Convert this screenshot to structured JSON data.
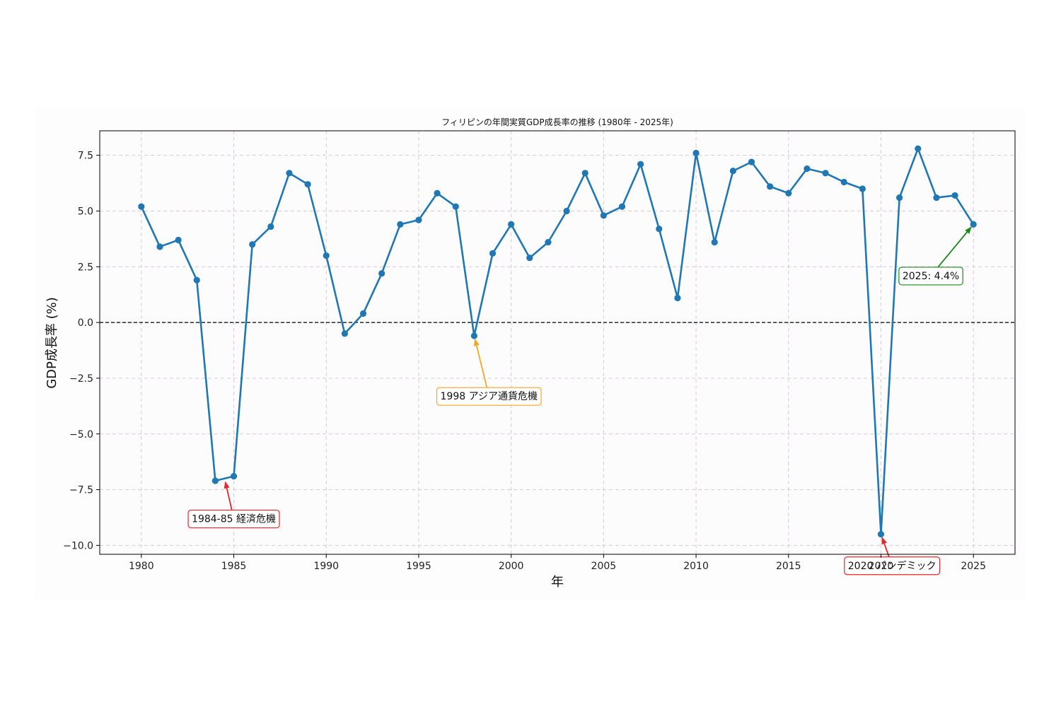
{
  "chart_data": {
    "type": "line",
    "title": "フィリピンの年間実質GDP成長率の推移 (1980年 - 2025年)",
    "xlabel": "年",
    "ylabel": "GDP成長率 (%)",
    "xlim": [
      1977.75,
      2027.25
    ],
    "ylim": [
      -10.4,
      8.6
    ],
    "grid": true,
    "x_ticks": [
      1980,
      1985,
      1990,
      1995,
      2000,
      2005,
      2010,
      2015,
      2020,
      2025
    ],
    "y_ticks": [
      -10.0,
      -7.5,
      -5.0,
      -2.5,
      0.0,
      2.5,
      5.0,
      7.5
    ],
    "x_tick_labels": [
      "1980",
      "1985",
      "1990",
      "1995",
      "2000",
      "2005",
      "2010",
      "2015",
      "2020",
      "2025"
    ],
    "y_tick_labels": [
      "−10.0",
      "−7.5",
      "−5.0",
      "−2.5",
      "0.0",
      "2.5",
      "5.0",
      "7.5"
    ],
    "reference_line": {
      "y": 0.0,
      "style": "dashed",
      "color": "#000000"
    },
    "line_color": "#1f77b4",
    "x": [
      1980,
      1981,
      1982,
      1983,
      1984,
      1985,
      1986,
      1987,
      1988,
      1989,
      1990,
      1991,
      1992,
      1993,
      1994,
      1995,
      1996,
      1997,
      1998,
      1999,
      2000,
      2001,
      2002,
      2003,
      2004,
      2005,
      2006,
      2007,
      2008,
      2009,
      2010,
      2011,
      2012,
      2013,
      2014,
      2015,
      2016,
      2017,
      2018,
      2019,
      2020,
      2021,
      2022,
      2023,
      2024,
      2025
    ],
    "y": [
      5.2,
      3.4,
      3.7,
      1.9,
      -7.1,
      -6.9,
      3.5,
      4.3,
      6.7,
      6.2,
      3.0,
      -0.5,
      0.4,
      2.2,
      4.4,
      4.6,
      5.8,
      5.2,
      -0.6,
      3.1,
      4.4,
      2.9,
      3.6,
      5.0,
      6.7,
      4.8,
      5.2,
      7.1,
      4.2,
      1.1,
      7.6,
      3.6,
      6.8,
      7.2,
      6.1,
      5.8,
      6.9,
      6.7,
      6.3,
      6.0,
      -9.5,
      5.6,
      7.8,
      5.6,
      5.7,
      4.4
    ],
    "annotations": [
      {
        "text": "1984-85 経済危機",
        "point_x": 1984.5,
        "point_y": -7.0,
        "text_x": 1985.0,
        "text_y": -8.8,
        "color": "#e8262a"
      },
      {
        "text": "1998 アジア通貨危機",
        "point_x": 1998,
        "point_y": -0.6,
        "text_x": 1998.8,
        "text_y": -3.3,
        "color": "#f5a623"
      },
      {
        "text": "2020 パンデミック",
        "point_x": 2020,
        "point_y": -9.5,
        "text_x": 2020.6,
        "text_y": -10.9,
        "color": "#e8262a"
      },
      {
        "text": "2025: 4.4%",
        "point_x": 2025,
        "point_y": 4.4,
        "text_x": 2022.7,
        "text_y": 2.1,
        "color": "#1a8a1a"
      }
    ]
  }
}
